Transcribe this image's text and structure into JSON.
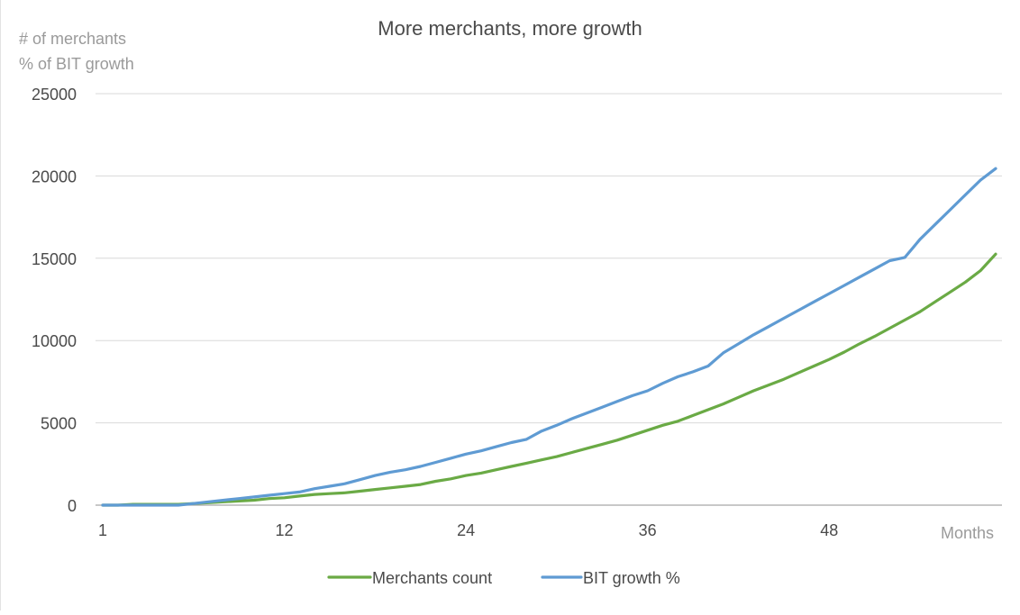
{
  "chart_data": {
    "type": "line",
    "title": "More merchants, more growth",
    "ylabel_lines": [
      "# of merchants",
      "% of BIT growth"
    ],
    "xlabel": "Months",
    "ylim": [
      0,
      25000
    ],
    "xlim": [
      1,
      60
    ],
    "y_ticks": [
      "25000",
      "20000",
      "15000",
      "10000",
      "5000",
      "0"
    ],
    "y_tick_values": [
      25000,
      20000,
      15000,
      10000,
      5000,
      0
    ],
    "x_ticks": [
      "1",
      "12",
      "24",
      "36",
      "48"
    ],
    "x_tick_values": [
      1,
      13,
      25,
      37,
      49
    ],
    "grid": true,
    "legend_position": "bottom-center",
    "x": [
      1,
      2,
      3,
      4,
      5,
      6,
      7,
      8,
      9,
      10,
      11,
      12,
      13,
      14,
      15,
      16,
      17,
      18,
      19,
      20,
      21,
      22,
      23,
      24,
      25,
      26,
      27,
      28,
      29,
      30,
      31,
      32,
      33,
      34,
      35,
      36,
      37,
      38,
      39,
      40,
      41,
      42,
      43,
      44,
      45,
      46,
      47,
      48,
      49,
      50,
      51,
      52,
      53,
      54,
      55,
      56,
      57,
      58,
      59,
      60
    ],
    "series": [
      {
        "name": "Merchants count",
        "color": "#6aaa45",
        "values": [
          0,
          0,
          50,
          50,
          50,
          50,
          100,
          150,
          200,
          250,
          300,
          400,
          450,
          550,
          650,
          700,
          750,
          850,
          950,
          1050,
          1150,
          1250,
          1450,
          1600,
          1800,
          1950,
          2150,
          2350,
          2550,
          2750,
          2950,
          3200,
          3450,
          3700,
          3950,
          4250,
          4550,
          4850,
          5100,
          5450,
          5800,
          6150,
          6550,
          6950,
          7300,
          7650,
          8050,
          8450,
          8850,
          9300,
          9800,
          10250,
          10750,
          11250,
          11750,
          12350,
          12950,
          13550,
          14250,
          15250
        ]
      },
      {
        "name": "BIT growth %",
        "color": "#5f9bd3",
        "values": [
          0,
          0,
          0,
          0,
          0,
          0,
          100,
          200,
          300,
          400,
          500,
          600,
          700,
          800,
          1000,
          1150,
          1300,
          1550,
          1800,
          2000,
          2150,
          2350,
          2600,
          2850,
          3100,
          3300,
          3550,
          3800,
          4000,
          4500,
          4850,
          5250,
          5600,
          5950,
          6300,
          6650,
          6950,
          7400,
          7800,
          8100,
          8450,
          9250,
          9800,
          10350,
          10850,
          11350,
          11850,
          12350,
          12850,
          13350,
          13850,
          14350,
          14850,
          15050,
          16150,
          17050,
          17950,
          18850,
          19750,
          20450
        ]
      }
    ]
  }
}
